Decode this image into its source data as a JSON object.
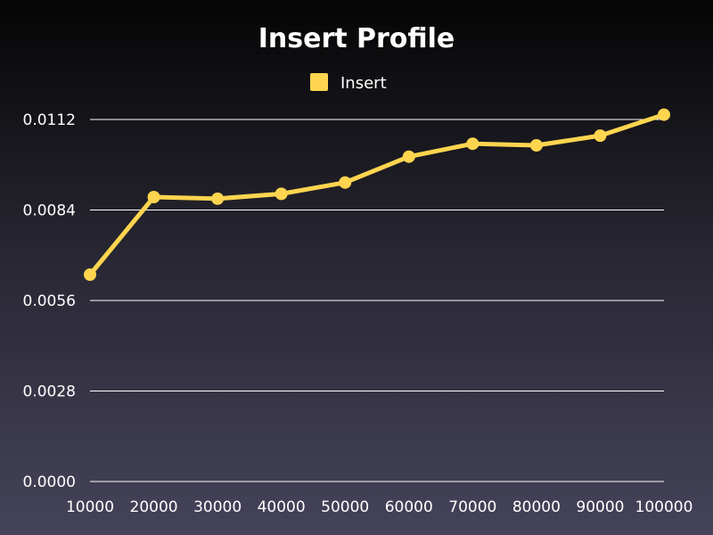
{
  "chart_data": {
    "type": "line",
    "title": "Insert Profile",
    "xlabel": "",
    "ylabel": "",
    "categories": [
      "10000",
      "20000",
      "30000",
      "40000",
      "50000",
      "60000",
      "70000",
      "80000",
      "90000",
      "100000"
    ],
    "series": [
      {
        "name": "Insert",
        "color": "#ffd54f",
        "values": [
          0.0064,
          0.0088,
          0.00875,
          0.0089,
          0.00925,
          0.01005,
          0.01045,
          0.0104,
          0.0107,
          0.01135
        ]
      }
    ],
    "y_ticks": [
      "0.0000",
      "0.0028",
      "0.0056",
      "0.0084",
      "0.0112"
    ],
    "ylim": [
      0,
      0.0112
    ],
    "grid": true,
    "legend_position": "top-center"
  }
}
